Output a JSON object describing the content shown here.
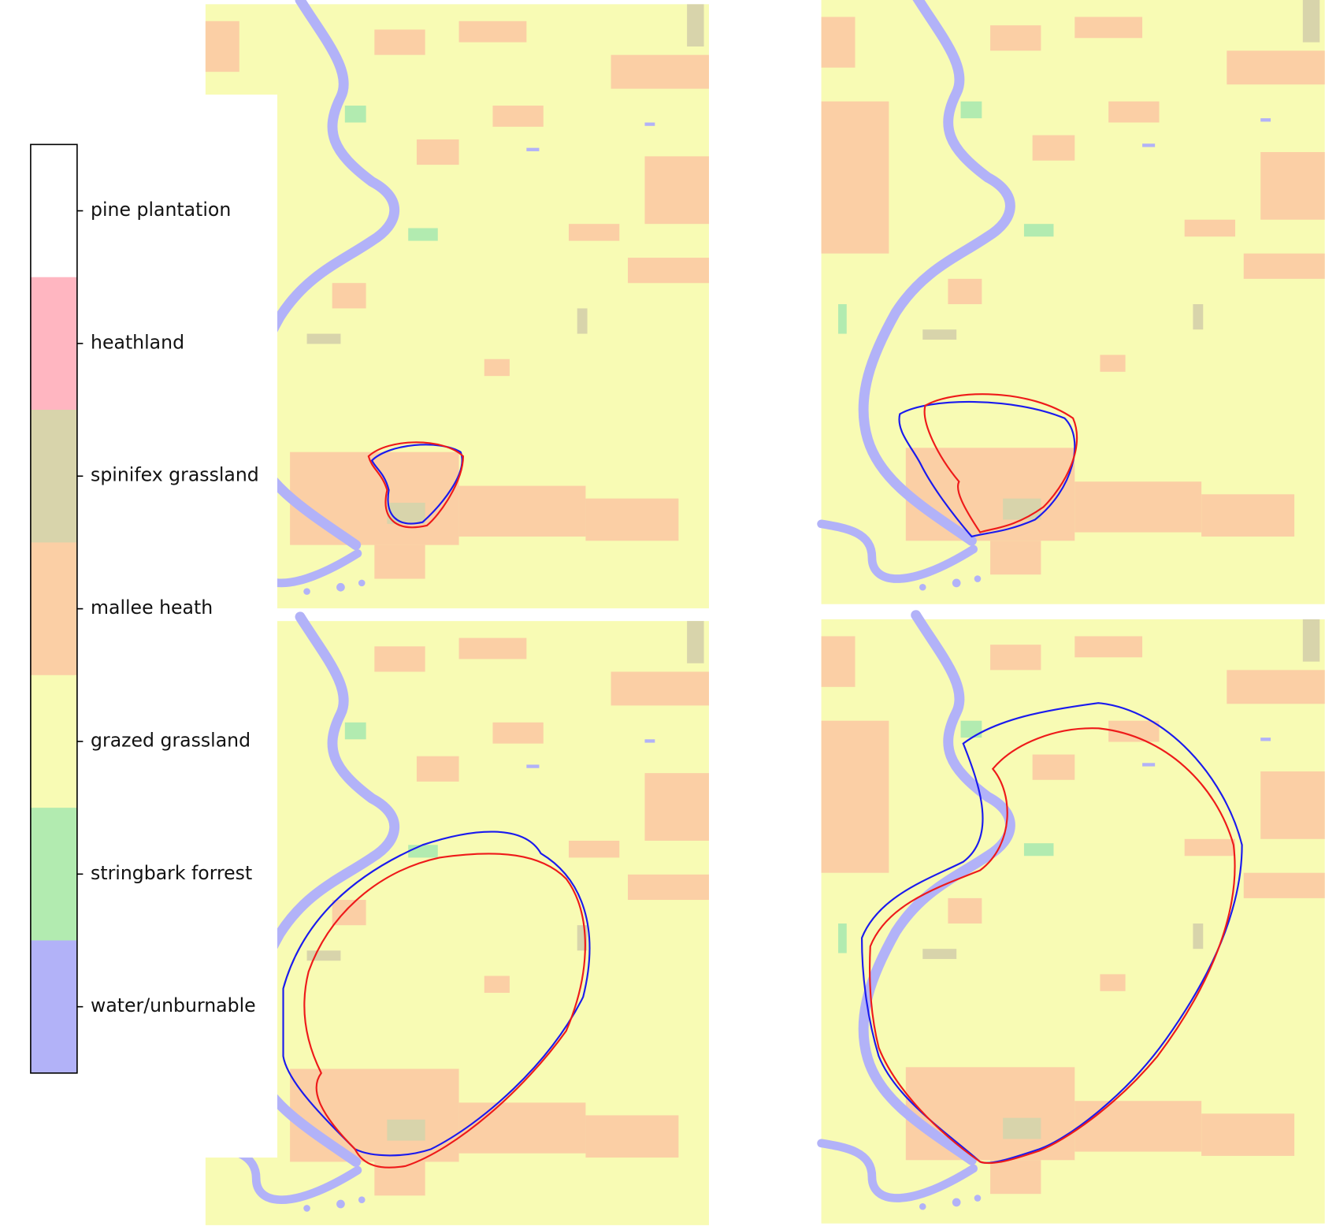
{
  "legend": {
    "items": [
      {
        "label": "pine plantation",
        "color": "#ffffff"
      },
      {
        "label": "heathland",
        "color": "#ffb6c1"
      },
      {
        "label": "spinifex grassland",
        "color": "#d8d4ab"
      },
      {
        "label": "mallee heath",
        "color": "#fbcfa5"
      },
      {
        "label": "grazed grassland",
        "color": "#f8fbb4"
      },
      {
        "label": "stringbark forrest",
        "color": "#b2ebb0"
      },
      {
        "label": "water/unburnable",
        "color": "#b2b2f8"
      }
    ]
  }
}
